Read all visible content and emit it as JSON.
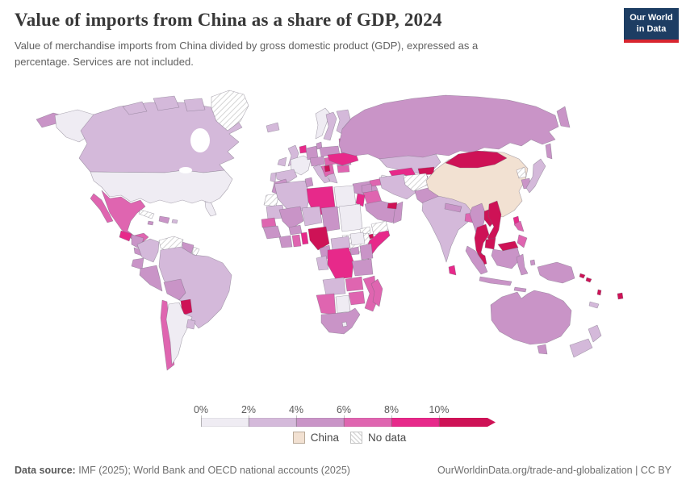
{
  "header": {
    "title": "Value of imports from China as a share of GDP, 2024",
    "subtitle": "Value of merchandise imports from China divided by gross domestic product (GDP), expressed as a percentage. Services are not included.",
    "logo": {
      "line1": "Our World",
      "line2": "in Data",
      "bg_color": "#1d3d63",
      "accent_color": "#d8252f"
    }
  },
  "chart_data": {
    "type": "heatmap",
    "subtype": "choropleth-world-map",
    "title": "Value of imports from China as a share of GDP, 2024",
    "unit": "% of GDP",
    "legend": {
      "tick_labels": [
        "0%",
        "2%",
        "4%",
        "6%",
        "8%",
        "10%"
      ],
      "bins": [
        {
          "label": "0%-2%",
          "color": "#efecf3"
        },
        {
          "label": "2%-4%",
          "color": "#d4b9da"
        },
        {
          "label": "4%-6%",
          "color": "#c994c7"
        },
        {
          "label": "6%-8%",
          "color": "#df65b0"
        },
        {
          "label": "8%-10%",
          "color": "#e7298a"
        },
        {
          "label": "10%+",
          "color": "#ce1256"
        }
      ],
      "bin_colors": {
        "0-2%": "#efecf3",
        "2-4%": "#d4b9da",
        "4-6%": "#c994c7",
        "6-8%": "#df65b0",
        "8-10%": "#e7298a",
        "10%+": "#ce1256",
        "china": "#f2e1d2"
      },
      "arrow_on_last_bin": true,
      "china_label": "China",
      "china_color": "#f2e1d2",
      "no_data_label": "No data"
    },
    "regions": [
      {
        "id": "chukotka",
        "label": "Russia (far east)",
        "bin": "4-6%"
      },
      {
        "id": "alaska",
        "label": "United States (Alaska)",
        "bin": "0-2%"
      },
      {
        "id": "canada",
        "label": "Canada",
        "bin": "2-4%"
      },
      {
        "id": "arctic1",
        "label": "Canada (arctic islands)",
        "bin": "2-4%"
      },
      {
        "id": "arctic2",
        "label": "Canada (arctic islands)",
        "bin": "2-4%"
      },
      {
        "id": "arctic3",
        "label": "Canada (arctic islands)",
        "bin": "2-4%"
      },
      {
        "id": "greenland",
        "label": "Greenland",
        "bin": "no-data"
      },
      {
        "id": "usa",
        "label": "United States",
        "bin": "0-2%"
      },
      {
        "id": "florida",
        "label": "United States (Florida)",
        "bin": "0-2%"
      },
      {
        "id": "baja",
        "label": "Mexico (Baja California)",
        "bin": "6-8%"
      },
      {
        "id": "mexico",
        "label": "Mexico",
        "bin": "6-8%"
      },
      {
        "id": "guatemala",
        "label": "Guatemala",
        "bin": "8-10%"
      },
      {
        "id": "honduras",
        "label": "Honduras / Nicaragua",
        "bin": "4-6%"
      },
      {
        "id": "costapanama",
        "label": "Costa Rica / Panama",
        "bin": "4-6%"
      },
      {
        "id": "cuba",
        "label": "Cuba",
        "bin": "no-data"
      },
      {
        "id": "hispaniola",
        "label": "Dominican Republic / Haiti",
        "bin": "4-6%"
      },
      {
        "id": "jamaica",
        "label": "Jamaica",
        "bin": "4-6%"
      },
      {
        "id": "puertorico",
        "label": "Puerto Rico",
        "bin": "2-4%"
      },
      {
        "id": "venezuela",
        "label": "Venezuela",
        "bin": "no-data"
      },
      {
        "id": "guyana",
        "label": "Guyana / Suriname",
        "bin": "4-6%"
      },
      {
        "id": "frguiana",
        "label": "French Guiana",
        "bin": "no-data"
      },
      {
        "id": "colombia",
        "label": "Colombia",
        "bin": "2-4%"
      },
      {
        "id": "ecuador",
        "label": "Ecuador",
        "bin": "4-6%"
      },
      {
        "id": "peru",
        "label": "Peru",
        "bin": "4-6%"
      },
      {
        "id": "brazil",
        "label": "Brazil",
        "bin": "2-4%"
      },
      {
        "id": "bolivia",
        "label": "Bolivia",
        "bin": "4-6%"
      },
      {
        "id": "paraguay",
        "label": "Paraguay",
        "bin": "10%+"
      },
      {
        "id": "chile",
        "label": "Chile",
        "bin": "6-8%"
      },
      {
        "id": "argentina",
        "label": "Argentina",
        "bin": "0-2%"
      },
      {
        "id": "uruguay",
        "label": "Uruguay",
        "bin": "2-4%"
      },
      {
        "id": "iceland",
        "label": "Iceland",
        "bin": "2-4%"
      },
      {
        "id": "norway",
        "label": "Norway",
        "bin": "0-2%"
      },
      {
        "id": "sweden",
        "label": "Sweden",
        "bin": "2-4%"
      },
      {
        "id": "finland",
        "label": "Finland",
        "bin": "2-4%"
      },
      {
        "id": "denmark",
        "label": "Denmark",
        "bin": "4-6%"
      },
      {
        "id": "uk",
        "label": "United Kingdom",
        "bin": "2-4%"
      },
      {
        "id": "ireland",
        "label": "Ireland",
        "bin": "2-4%"
      },
      {
        "id": "benelux",
        "label": "Netherlands / Belgium",
        "bin": "8-10%"
      },
      {
        "id": "france",
        "label": "France",
        "bin": "0-2%"
      },
      {
        "id": "spain",
        "label": "Spain",
        "bin": "2-4%"
      },
      {
        "id": "portugal",
        "label": "Portugal",
        "bin": "2-4%"
      },
      {
        "id": "germany",
        "label": "Germany",
        "bin": "4-6%"
      },
      {
        "id": "poland",
        "label": "Poland",
        "bin": "4-6%"
      },
      {
        "id": "czechaustria",
        "label": "Czechia / Austria",
        "bin": "4-6%"
      },
      {
        "id": "hungary",
        "label": "Hungary / Slovakia",
        "bin": "6-8%"
      },
      {
        "id": "italy",
        "label": "Italy",
        "bin": "2-4%"
      },
      {
        "id": "balkans",
        "label": "Balkans",
        "bin": "6-8%"
      },
      {
        "id": "serbia",
        "label": "Serbia",
        "bin": "10%+"
      },
      {
        "id": "romania",
        "label": "Romania",
        "bin": "4-6%"
      },
      {
        "id": "bulgaria",
        "label": "Bulgaria",
        "bin": "6-8%"
      },
      {
        "id": "greece",
        "label": "Greece",
        "bin": "2-4%"
      },
      {
        "id": "baltics",
        "label": "Baltic states",
        "bin": "6-8%"
      },
      {
        "id": "belarus",
        "label": "Belarus",
        "bin": "4-6%"
      },
      {
        "id": "ukraine",
        "label": "Ukraine",
        "bin": "8-10%"
      },
      {
        "id": "turkey",
        "label": "Turkey",
        "bin": "4-6%"
      },
      {
        "id": "russia",
        "label": "Russia",
        "bin": "4-6%"
      },
      {
        "id": "kamchatka",
        "label": "Russia (Kamchatka)",
        "bin": "4-6%"
      },
      {
        "id": "sakhalin",
        "label": "Russia (Sakhalin)",
        "bin": "4-6%"
      },
      {
        "id": "kazakhstan",
        "label": "Kazakhstan",
        "bin": "2-4%"
      },
      {
        "id": "uzbekistan",
        "label": "Uzbekistan",
        "bin": "8-10%"
      },
      {
        "id": "turkmenistan",
        "label": "Turkmenistan",
        "bin": "0-2%"
      },
      {
        "id": "kyrgyzstan",
        "label": "Kyrgyzstan",
        "bin": "10%+"
      },
      {
        "id": "tajikistan",
        "label": "Tajikistan",
        "bin": "6-8%"
      },
      {
        "id": "caucasus",
        "label": "Georgia / Azerbaijan",
        "bin": "6-8%"
      },
      {
        "id": "syria",
        "label": "Syria",
        "bin": "4-6%"
      },
      {
        "id": "iraq",
        "label": "Iraq",
        "bin": "6-8%"
      },
      {
        "id": "israeljordan",
        "label": "Israel / Jordan",
        "bin": "8-10%"
      },
      {
        "id": "saudi",
        "label": "Saudi Arabia",
        "bin": "4-6%"
      },
      {
        "id": "yemen",
        "label": "Yemen",
        "bin": "no-data"
      },
      {
        "id": "oman",
        "label": "Oman",
        "bin": "4-6%"
      },
      {
        "id": "uae",
        "label": "United Arab Emirates",
        "bin": "10%+"
      },
      {
        "id": "iran",
        "label": "Iran",
        "bin": "2-4%"
      },
      {
        "id": "afghanistan",
        "label": "Afghanistan",
        "bin": "no-data"
      },
      {
        "id": "pakistan",
        "label": "Pakistan",
        "bin": "4-6%"
      },
      {
        "id": "india",
        "label": "India",
        "bin": "2-4%"
      },
      {
        "id": "nepal",
        "label": "Nepal",
        "bin": "4-6%"
      },
      {
        "id": "bangladesh",
        "label": "Bangladesh",
        "bin": "6-8%"
      },
      {
        "id": "srilanka",
        "label": "Sri Lanka",
        "bin": "8-10%"
      },
      {
        "id": "china",
        "label": "China",
        "bin": "china"
      },
      {
        "id": "mongolia",
        "label": "Mongolia",
        "bin": "10%+"
      },
      {
        "id": "nkorea",
        "label": "North Korea",
        "bin": "no-data"
      },
      {
        "id": "skorea",
        "label": "South Korea",
        "bin": "4-6%"
      },
      {
        "id": "japan",
        "label": "Japan",
        "bin": "2-4%"
      },
      {
        "id": "taiwan",
        "label": "Taiwan",
        "bin": "8-10%"
      },
      {
        "id": "myanmar",
        "label": "Myanmar",
        "bin": "4-6%"
      },
      {
        "id": "laos",
        "label": "Laos",
        "bin": "10%+"
      },
      {
        "id": "vietnam",
        "label": "Vietnam",
        "bin": "10%+"
      },
      {
        "id": "thailand",
        "label": "Thailand",
        "bin": "10%+"
      },
      {
        "id": "cambodia",
        "label": "Cambodia",
        "bin": "10%+"
      },
      {
        "id": "malaysiapen",
        "label": "Malaysia (peninsula)",
        "bin": "10%+"
      },
      {
        "id": "malaysiaborneo",
        "label": "Malaysia (Borneo)",
        "bin": "10%+"
      },
      {
        "id": "borneoindo",
        "label": "Indonesia (Kalimantan)",
        "bin": "4-6%"
      },
      {
        "id": "sumatra",
        "label": "Indonesia (Sumatra)",
        "bin": "4-6%"
      },
      {
        "id": "java",
        "label": "Indonesia (Java)",
        "bin": "4-6%"
      },
      {
        "id": "sulawesi",
        "label": "Indonesia (Sulawesi)",
        "bin": "4-6%"
      },
      {
        "id": "moluccas",
        "label": "Indonesia (Moluccas)",
        "bin": "4-6%"
      },
      {
        "id": "lessersunda",
        "label": "Indonesia (Lesser Sunda)",
        "bin": "4-6%"
      },
      {
        "id": "newguinea",
        "label": "Papua New Guinea",
        "bin": "4-6%"
      },
      {
        "id": "philippinesn",
        "label": "Philippines (Luzon)",
        "bin": "6-8%"
      },
      {
        "id": "philippiness",
        "label": "Philippines (south)",
        "bin": "6-8%"
      },
      {
        "id": "australia",
        "label": "Australia",
        "bin": "4-6%"
      },
      {
        "id": "tasmania",
        "label": "Australia (Tasmania)",
        "bin": "4-6%"
      },
      {
        "id": "nznorth",
        "label": "New Zealand (North Island)",
        "bin": "2-4%"
      },
      {
        "id": "nzsouth",
        "label": "New Zealand (South Island)",
        "bin": "2-4%"
      },
      {
        "id": "fiji",
        "label": "Fiji",
        "bin": "10%+"
      },
      {
        "id": "solomon1",
        "label": "Solomon Islands",
        "bin": "10%+"
      },
      {
        "id": "solomon2",
        "label": "Solomon Islands",
        "bin": "10%+"
      },
      {
        "id": "vanuatu",
        "label": "Vanuatu",
        "bin": "10%+"
      },
      {
        "id": "newcaledonia",
        "label": "New Caledonia",
        "bin": "2-4%"
      },
      {
        "id": "morocco",
        "label": "Morocco",
        "bin": "4-6%"
      },
      {
        "id": "wsahara",
        "label": "Western Sahara",
        "bin": "no-data"
      },
      {
        "id": "mauritania",
        "label": "Mauritania",
        "bin": "2-4%"
      },
      {
        "id": "senegal",
        "label": "Senegal",
        "bin": "6-8%"
      },
      {
        "id": "guineagrp",
        "label": "Guinea region",
        "bin": "4-6%"
      },
      {
        "id": "algeria",
        "label": "Algeria",
        "bin": "2-4%"
      },
      {
        "id": "tunisia",
        "label": "Tunisia",
        "bin": "4-6%"
      },
      {
        "id": "libya",
        "label": "Libya",
        "bin": "8-10%"
      },
      {
        "id": "egypt",
        "label": "Egypt",
        "bin": "0-2%"
      },
      {
        "id": "mali",
        "label": "Mali",
        "bin": "4-6%"
      },
      {
        "id": "burkina",
        "label": "Burkina Faso",
        "bin": "4-6%"
      },
      {
        "id": "niger",
        "label": "Niger",
        "bin": "2-4%"
      },
      {
        "id": "chad",
        "label": "Chad",
        "bin": "4-6%"
      },
      {
        "id": "sudan",
        "label": "Sudan",
        "bin": "0-2%"
      },
      {
        "id": "eritrea",
        "label": "Eritrea",
        "bin": "no-data"
      },
      {
        "id": "djibouti",
        "label": "Djibouti",
        "bin": "10%+"
      },
      {
        "id": "ethiopia",
        "label": "Ethiopia",
        "bin": "no-data"
      },
      {
        "id": "somalia",
        "label": "Somalia",
        "bin": "8-10%"
      },
      {
        "id": "ivorycoast",
        "label": "Côte d'Ivoire",
        "bin": "4-6%"
      },
      {
        "id": "ghana",
        "label": "Ghana",
        "bin": "6-8%"
      },
      {
        "id": "togobenin",
        "label": "Togo / Benin",
        "bin": "8-10%"
      },
      {
        "id": "nigeria",
        "label": "Nigeria",
        "bin": "10%+"
      },
      {
        "id": "cameroon",
        "label": "Cameroon",
        "bin": "4-6%"
      },
      {
        "id": "car",
        "label": "Central African Republic",
        "bin": "2-4%"
      },
      {
        "id": "ssudan",
        "label": "South Sudan",
        "bin": "0-2%"
      },
      {
        "id": "gaboncongo",
        "label": "Gabon / Congo",
        "bin": "2-4%"
      },
      {
        "id": "drc",
        "label": "Democratic Republic of Congo",
        "bin": "8-10%"
      },
      {
        "id": "uganda",
        "label": "Uganda",
        "bin": "4-6%"
      },
      {
        "id": "kenya",
        "label": "Kenya",
        "bin": "4-6%"
      },
      {
        "id": "tanzania",
        "label": "Tanzania",
        "bin": "4-6%"
      },
      {
        "id": "angola",
        "label": "Angola",
        "bin": "2-4%"
      },
      {
        "id": "zambia",
        "label": "Zambia",
        "bin": "6-8%"
      },
      {
        "id": "mozambique",
        "label": "Mozambique",
        "bin": "6-8%"
      },
      {
        "id": "zimbabwe",
        "label": "Zimbabwe",
        "bin": "6-8%"
      },
      {
        "id": "namibia",
        "label": "Namibia",
        "bin": "6-8%"
      },
      {
        "id": "botswana",
        "label": "Botswana",
        "bin": "0-2%"
      },
      {
        "id": "southafrica",
        "label": "South Africa",
        "bin": "4-6%"
      },
      {
        "id": "lesotho",
        "label": "Lesotho",
        "bin": "0-2%"
      },
      {
        "id": "madagascar",
        "label": "Madagascar",
        "bin": "6-8%"
      }
    ]
  },
  "footer": {
    "data_source_label": "Data source:",
    "data_source_value": " IMF (2025); World Bank and OECD national accounts (2025)",
    "right_text": "OurWorldinData.org/trade-and-globalization | CC BY"
  }
}
